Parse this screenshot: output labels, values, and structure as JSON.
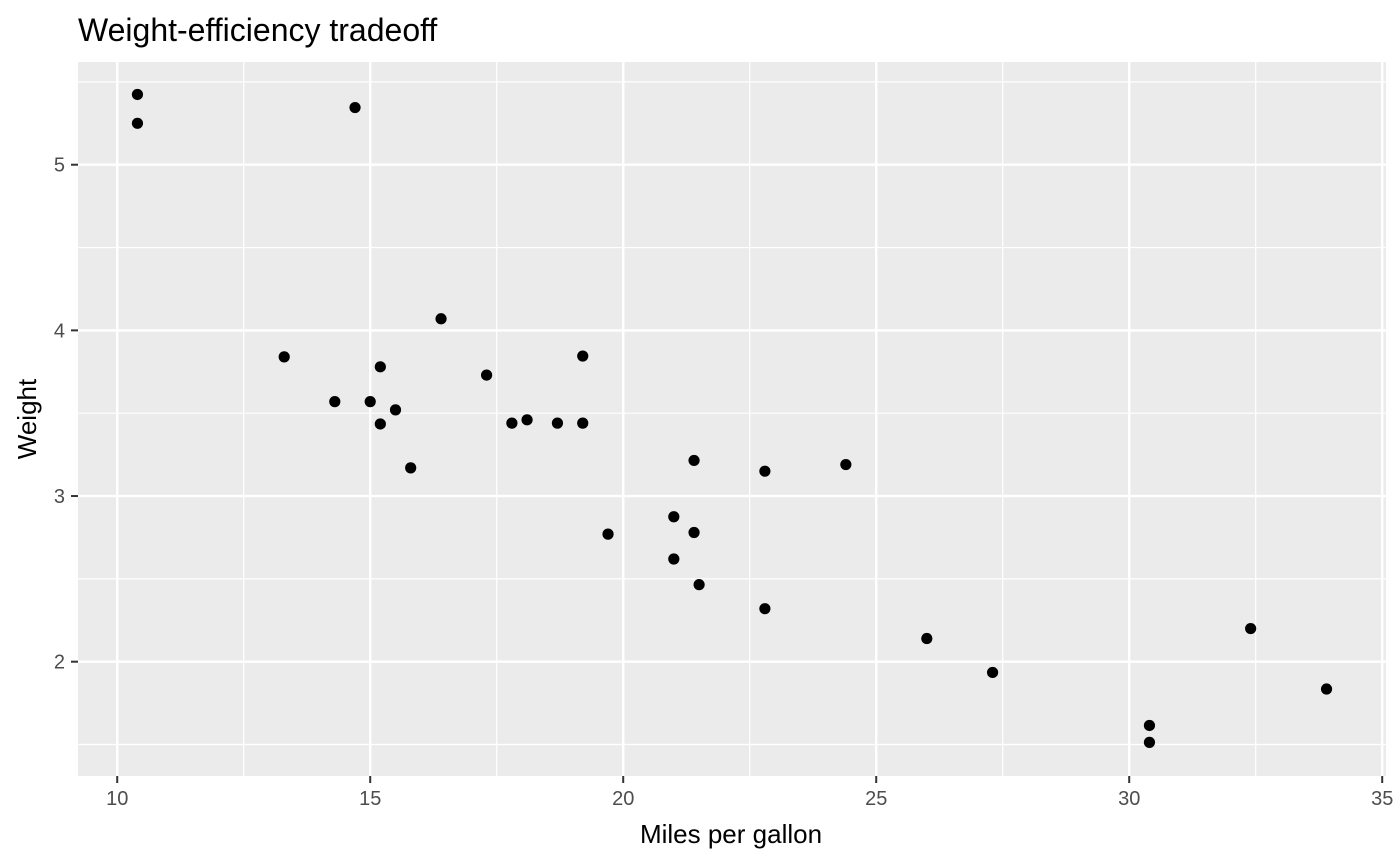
{
  "chart_data": {
    "type": "scatter",
    "title": "Weight-efficiency tradeoff",
    "xlabel": "Miles per gallon",
    "ylabel": "Weight",
    "xlim": [
      9.225,
      35.075
    ],
    "ylim": [
      1.31,
      5.62
    ],
    "x_ticks": [
      10,
      15,
      20,
      25,
      30,
      35
    ],
    "y_ticks": [
      2,
      3,
      4,
      5
    ],
    "x_minor": [
      12.5,
      17.5,
      22.5,
      27.5,
      32.5
    ],
    "y_minor": [
      1.5,
      2.5,
      3.5,
      4.5,
      5.5
    ],
    "grid": true,
    "panel_background": "#ebebeb",
    "grid_color": "#ffffff",
    "point_color": "#000000",
    "points": [
      {
        "x": 21.0,
        "y": 2.62
      },
      {
        "x": 21.0,
        "y": 2.875
      },
      {
        "x": 22.8,
        "y": 2.32
      },
      {
        "x": 21.4,
        "y": 3.215
      },
      {
        "x": 18.7,
        "y": 3.44
      },
      {
        "x": 18.1,
        "y": 3.46
      },
      {
        "x": 14.3,
        "y": 3.57
      },
      {
        "x": 24.4,
        "y": 3.19
      },
      {
        "x": 22.8,
        "y": 3.15
      },
      {
        "x": 19.2,
        "y": 3.44
      },
      {
        "x": 17.8,
        "y": 3.44
      },
      {
        "x": 16.4,
        "y": 4.07
      },
      {
        "x": 17.3,
        "y": 3.73
      },
      {
        "x": 15.2,
        "y": 3.78
      },
      {
        "x": 10.4,
        "y": 5.25
      },
      {
        "x": 10.4,
        "y": 5.424
      },
      {
        "x": 14.7,
        "y": 5.345
      },
      {
        "x": 32.4,
        "y": 2.2
      },
      {
        "x": 30.4,
        "y": 1.615
      },
      {
        "x": 33.9,
        "y": 1.835
      },
      {
        "x": 21.5,
        "y": 2.465
      },
      {
        "x": 15.5,
        "y": 3.52
      },
      {
        "x": 15.2,
        "y": 3.435
      },
      {
        "x": 13.3,
        "y": 3.84
      },
      {
        "x": 19.2,
        "y": 3.845
      },
      {
        "x": 27.3,
        "y": 1.935
      },
      {
        "x": 26.0,
        "y": 2.14
      },
      {
        "x": 30.4,
        "y": 1.513
      },
      {
        "x": 15.8,
        "y": 3.17
      },
      {
        "x": 19.7,
        "y": 2.77
      },
      {
        "x": 15.0,
        "y": 3.57
      },
      {
        "x": 21.4,
        "y": 2.78
      }
    ]
  }
}
